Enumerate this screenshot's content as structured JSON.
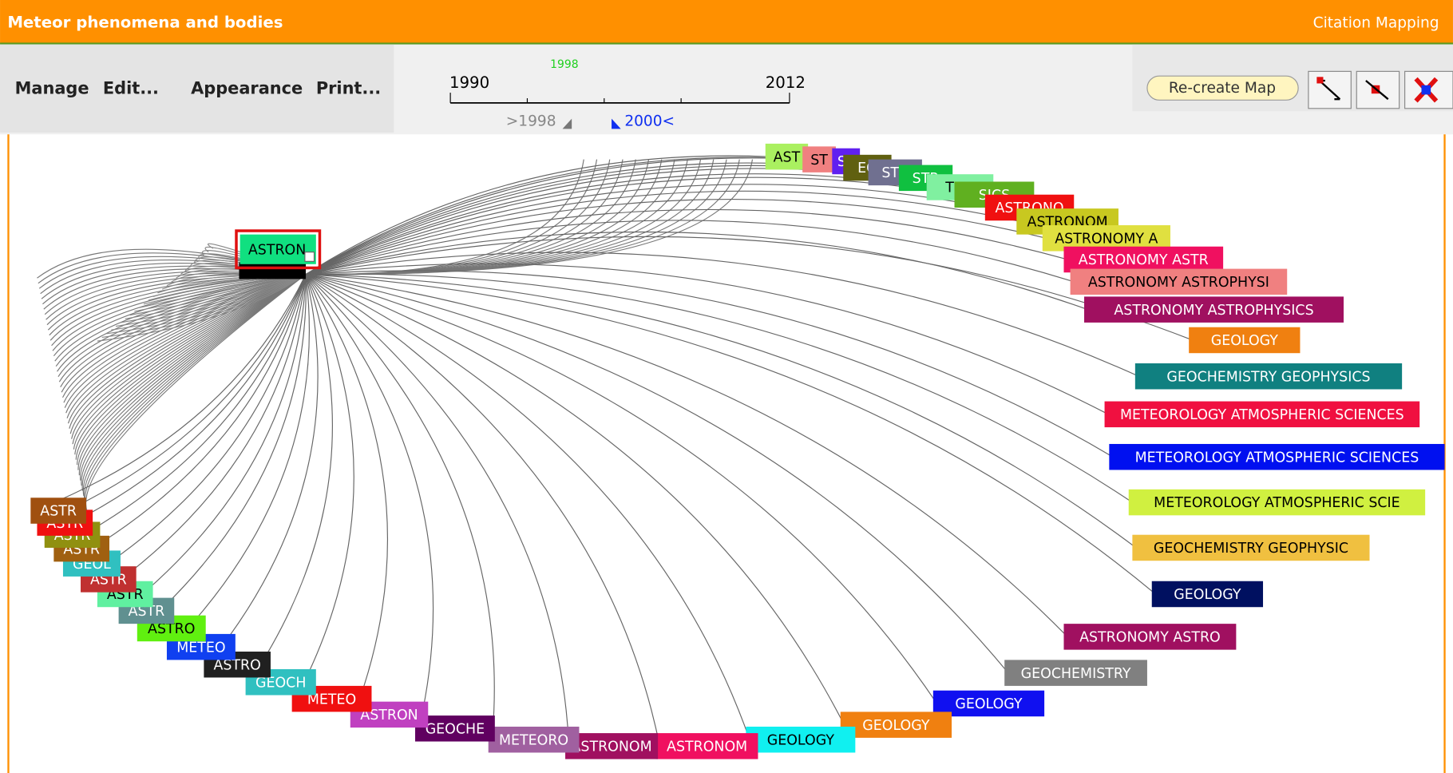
{
  "header": {
    "title": "Meteor phenomena and bodies",
    "app": "Citation Mapping"
  },
  "menu": [
    "Manage",
    "Edit...",
    "Appearance",
    "Print..."
  ],
  "timeline": {
    "start": "1990",
    "end": "2012",
    "current": "1998",
    "from": ">1998",
    "to": "2000<"
  },
  "button": "Re-create Map",
  "selected": {
    "label": "ASTRON",
    "color": "#10e080"
  },
  "nodes": [
    {
      "label": "AST",
      "color": "#aaf060"
    },
    {
      "label": "ST",
      "color": "#f08080"
    },
    {
      "label": "ST",
      "color": "#6020f0"
    },
    {
      "label": "EO",
      "color": "#606010"
    },
    {
      "label": "STR",
      "color": "#707090"
    },
    {
      "label": "STR",
      "color": "#10c040"
    },
    {
      "label": "TRO",
      "color": "#80f0a0"
    },
    {
      "label": "SICS",
      "color": "#60b020"
    },
    {
      "label": "ASTRONO",
      "color": "#f01010"
    },
    {
      "label": "ASTRONOM",
      "color": "#c8c820"
    },
    {
      "label": "ASTRONOMY A",
      "color": "#e0e040"
    },
    {
      "label": "ASTRONOMY ASTR",
      "color": "#f01060"
    },
    {
      "label": "ASTRONOMY ASTROPHYSI",
      "color": "#f08080"
    },
    {
      "label": "ASTRONOMY ASTROPHYSICS",
      "color": "#a01060"
    },
    {
      "label": "GEOLOGY",
      "color": "#f08010"
    },
    {
      "label": "GEOCHEMISTRY GEOPHYSICS",
      "color": "#108080"
    },
    {
      "label": "METEOROLOGY ATMOSPHERIC SCIENCES",
      "color": "#f01040"
    },
    {
      "label": "METEOROLOGY ATMOSPHERIC SCIENCES",
      "color": "#0010f0"
    },
    {
      "label": "METEOROLOGY ATMOSPHERIC SCIE",
      "color": "#d0f040"
    },
    {
      "label": "GEOCHEMISTRY GEOPHYSIC",
      "color": "#f0c040"
    },
    {
      "label": "GEOLOGY",
      "color": "#001060"
    },
    {
      "label": "ASTRONOMY ASTRO",
      "color": "#a01060"
    },
    {
      "label": "GEOCHEMISTRY",
      "color": "#808080"
    },
    {
      "label": "GEOLOGY",
      "color": "#1010f0"
    },
    {
      "label": "GEOLOGY",
      "color": "#f08010"
    },
    {
      "label": "GEOLOGY",
      "color": "#10f0f0"
    },
    {
      "label": "ASTRONOM",
      "color": "#f01060"
    },
    {
      "label": "ASTRONOM",
      "color": "#a01060"
    },
    {
      "label": "METEORO",
      "color": "#a060a0"
    },
    {
      "label": "GEOCHE",
      "color": "#600060"
    },
    {
      "label": "ASTRON",
      "color": "#c040c0"
    },
    {
      "label": "METEO",
      "color": "#f01010"
    },
    {
      "label": "GEOCH",
      "color": "#30c0c0"
    },
    {
      "label": "ASTRO",
      "color": "#202020"
    },
    {
      "label": "METEO",
      "color": "#1040f0"
    },
    {
      "label": "ASTRO",
      "color": "#60f010"
    },
    {
      "label": "ASTR",
      "color": "#609090"
    },
    {
      "label": "ASTR",
      "color": "#60f0a0"
    },
    {
      "label": "ASTR",
      "color": "#c03030"
    },
    {
      "label": "GEOL",
      "color": "#30c0c0"
    },
    {
      "label": "ASTR",
      "color": "#a06010"
    },
    {
      "label": "ASTR",
      "color": "#909010"
    },
    {
      "label": "ASTR",
      "color": "#f01010"
    },
    {
      "label": "ASTR",
      "color": "#a05010"
    }
  ]
}
